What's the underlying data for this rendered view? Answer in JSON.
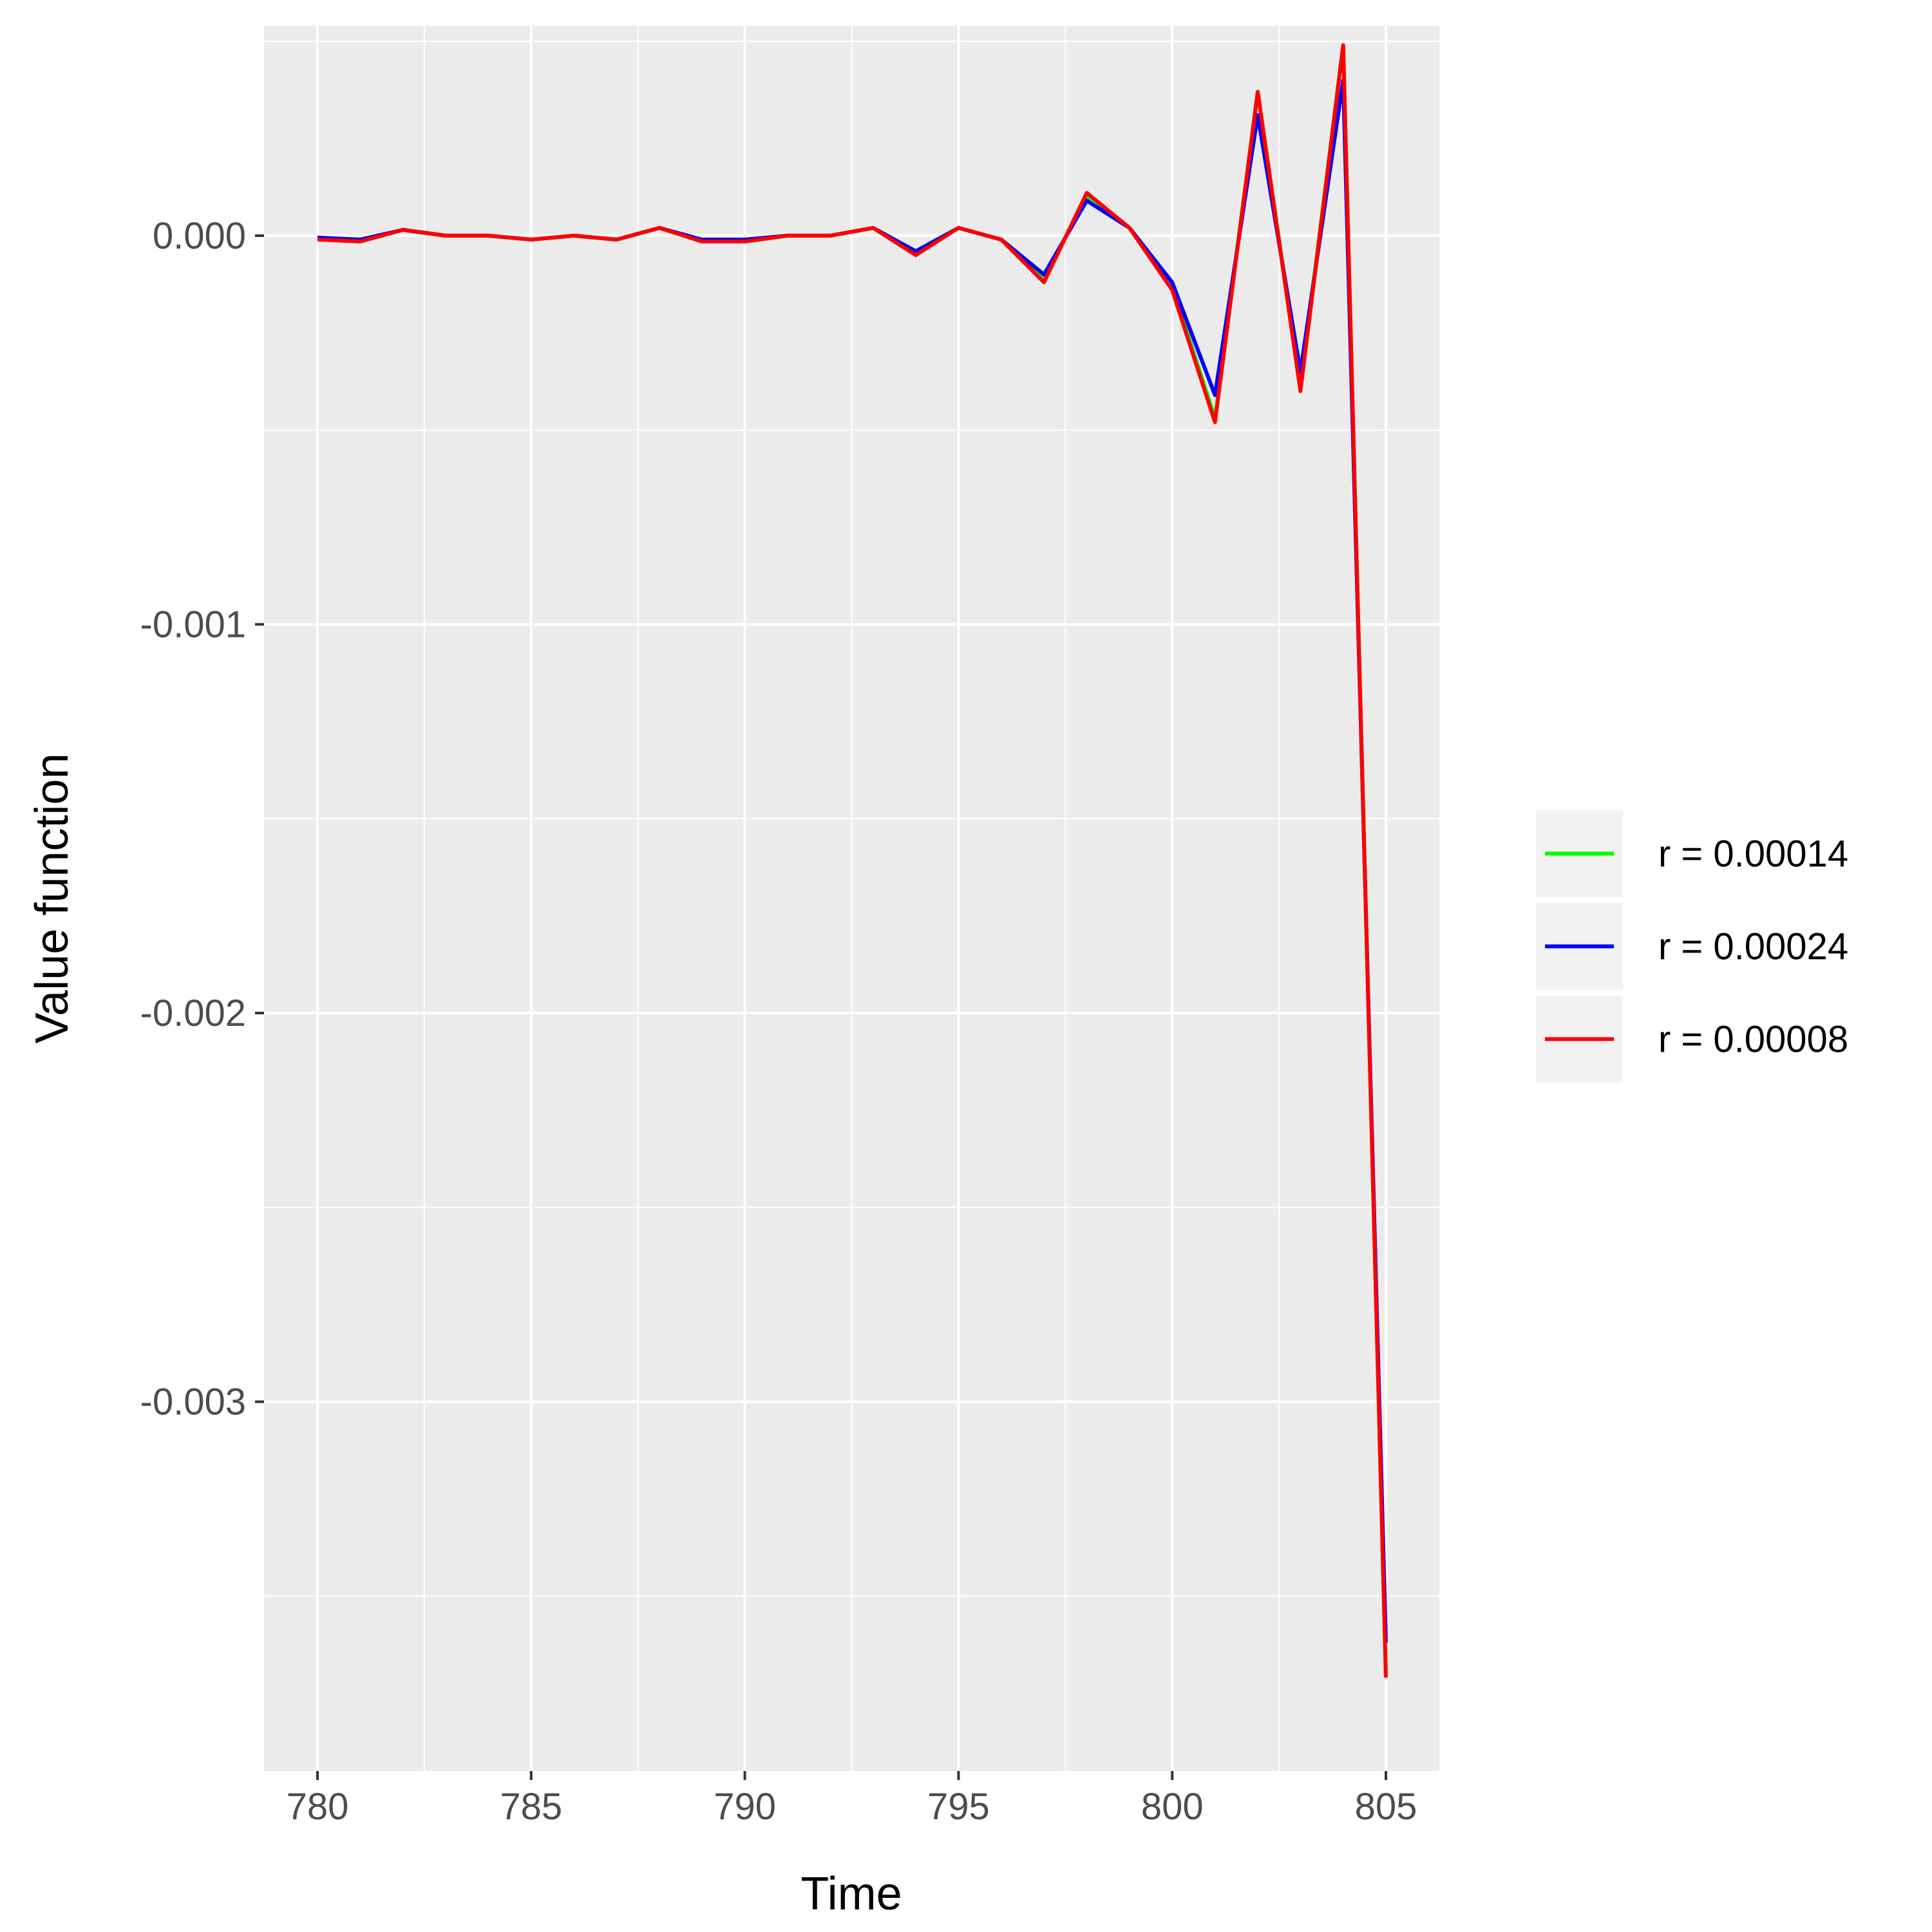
{
  "chart_data": {
    "type": "line",
    "title": "",
    "xlabel": "Time",
    "ylabel": "Value function",
    "xlim": [
      778.75,
      806.25
    ],
    "ylim": [
      -0.00395,
      0.00054
    ],
    "x_ticks": [
      780,
      785,
      790,
      795,
      800,
      805
    ],
    "x_tick_labels": [
      "780",
      "785",
      "790",
      "795",
      "800",
      "805"
    ],
    "y_ticks": [
      0.0,
      -0.001,
      -0.002,
      -0.003
    ],
    "y_tick_labels": [
      "0.000",
      "-0.001",
      "-0.002",
      "-0.003"
    ],
    "grid": true,
    "legend_position": "right",
    "x": [
      780,
      781,
      782,
      783,
      784,
      785,
      786,
      787,
      788,
      789,
      790,
      791,
      792,
      793,
      794,
      795,
      796,
      797,
      798,
      799,
      800,
      801,
      802,
      803,
      804,
      805
    ],
    "series": [
      {
        "name": "r = 0.00014",
        "color": "#00ff00",
        "values": [
          -5e-06,
          -1.5e-05,
          1.5e-05,
          0.0,
          0.0,
          -1e-05,
          0.0,
          -1e-05,
          2e-05,
          -1.5e-05,
          -1.5e-05,
          0.0,
          0.0,
          2e-05,
          -4e-05,
          2e-05,
          -1e-05,
          -0.00011,
          0.0001,
          2e-05,
          -0.00013,
          -0.00047,
          0.00037,
          -0.00039,
          0.00049,
          -0.0037
        ]
      },
      {
        "name": "r = 0.00024",
        "color": "#0000ff",
        "values": [
          -5e-06,
          -1e-05,
          1.5e-05,
          0.0,
          0.0,
          -1e-05,
          0.0,
          -1e-05,
          2e-05,
          -1e-05,
          -1e-05,
          0.0,
          0.0,
          2e-05,
          -4e-05,
          2e-05,
          -1e-05,
          -0.0001,
          9e-05,
          2e-05,
          -0.00012,
          -0.00041,
          0.00031,
          -0.00035,
          0.0004,
          -0.00362
        ]
      },
      {
        "name": "r = 0.00008",
        "color": "#ff0000",
        "values": [
          -1e-05,
          -1.5e-05,
          1.5e-05,
          0.0,
          0.0,
          -1e-05,
          0.0,
          -1e-05,
          2e-05,
          -1.5e-05,
          -1.5e-05,
          0.0,
          0.0,
          2e-05,
          -5e-05,
          2e-05,
          -1e-05,
          -0.00012,
          0.00011,
          2e-05,
          -0.00014,
          -0.00048,
          0.00037,
          -0.0004,
          0.00049,
          -0.00371
        ]
      }
    ]
  }
}
